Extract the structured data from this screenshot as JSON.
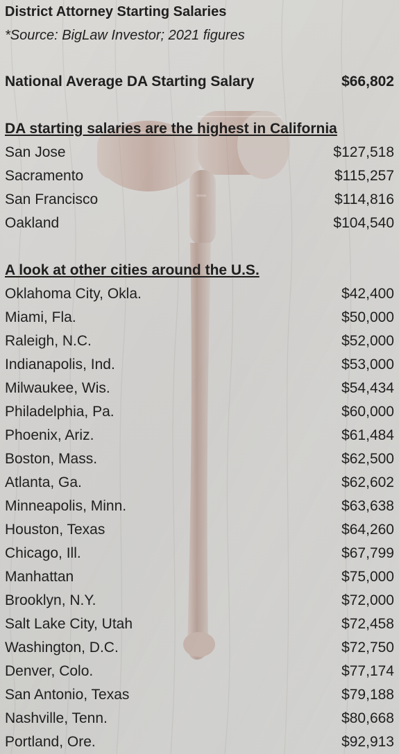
{
  "chart_data": {
    "type": "table",
    "title": "District Attorney Starting Salaries",
    "subtitle": "*Source: BigLaw Investor; 2021 figures",
    "summary": {
      "label": "National Average DA Starting Salary",
      "value": "$66,802"
    },
    "sections": [
      {
        "heading": "DA starting salaries are the highest in California",
        "rows": [
          {
            "city": "San Jose",
            "salary": "$127,518"
          },
          {
            "city": "Sacramento",
            "salary": "$115,257"
          },
          {
            "city": "San Francisco",
            "salary": "$114,816"
          },
          {
            "city": "Oakland",
            "salary": "$104,540"
          }
        ]
      },
      {
        "heading": "A look at other cities around the U.S.",
        "rows": [
          {
            "city": "Oklahoma City, Okla.",
            "salary": "$42,400"
          },
          {
            "city": "Miami, Fla.",
            "salary": "$50,000"
          },
          {
            "city": "Raleigh, N.C.",
            "salary": "$52,000"
          },
          {
            "city": "Indianapolis, Ind.",
            "salary": "$53,000"
          },
          {
            "city": "Milwaukee, Wis.",
            "salary": "$54,434"
          },
          {
            "city": "Philadelphia, Pa.",
            "salary": "$60,000"
          },
          {
            "city": "Phoenix, Ariz.",
            "salary": "$61,484"
          },
          {
            "city": "Boston, Mass.",
            "salary": "$62,500"
          },
          {
            "city": "Atlanta, Ga.",
            "salary": "$62,602"
          },
          {
            "city": "Minneapolis, Minn.",
            "salary": "$63,638"
          },
          {
            "city": "Houston, Texas",
            "salary": "$64,260"
          },
          {
            "city": "Chicago, Ill.",
            "salary": "$67,799"
          },
          {
            "city": "Manhattan",
            "salary": "$75,000"
          },
          {
            "city": "Brooklyn, N.Y.",
            "salary": "$72,000"
          },
          {
            "city": "Salt Lake City, Utah",
            "salary": "$72,458"
          },
          {
            "city": "Washington, D.C.",
            "salary": "$72,750"
          },
          {
            "city": "Denver, Colo.",
            "salary": "$77,174"
          },
          {
            "city": "San Antonio, Texas",
            "salary": "$79,188"
          },
          {
            "city": "Nashville, Tenn.",
            "salary": "$80,668"
          },
          {
            "city": "Portland, Ore.",
            "salary": "$92,913"
          }
        ]
      }
    ]
  },
  "colors": {
    "text": "#1f1f1f",
    "background": "#d5d4d1",
    "gavel": "#6a3a2a"
  },
  "decorations": {
    "background_image": "gavel-watermark"
  }
}
